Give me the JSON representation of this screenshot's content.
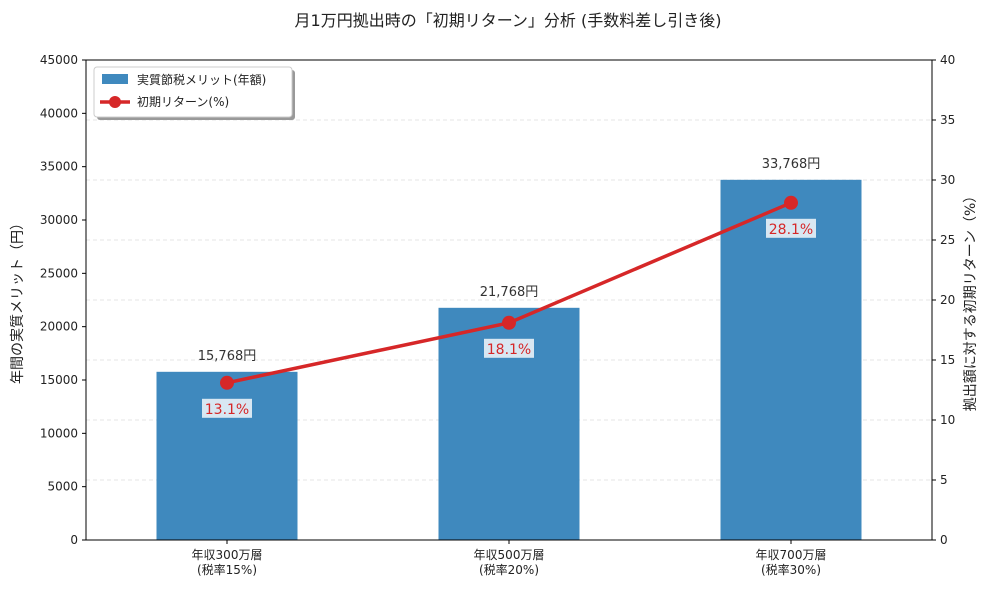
{
  "chart_data": {
    "type": "bar",
    "title": "月1万円拠出時の「初期リターン」分析 (手数料差し引き後)",
    "categories": [
      [
        "年収300万層",
        "(税率15%)"
      ],
      [
        "年収500万層",
        "(税率20%)"
      ],
      [
        "年収700万層",
        "(税率30%)"
      ]
    ],
    "series": [
      {
        "name": "実質節税メリット(年額)",
        "type": "bar",
        "axis": "left",
        "values": [
          15768,
          21768,
          33768
        ],
        "labels": [
          "15,768円",
          "21,768円",
          "33,768円"
        ],
        "color": "#3f89be"
      },
      {
        "name": "初期リターン(%)",
        "type": "line",
        "axis": "right",
        "values": [
          13.1,
          18.1,
          28.1
        ],
        "labels": [
          "13.1%",
          "18.1%",
          "28.1%"
        ],
        "color": "#d62728"
      }
    ],
    "ylabel": "年間の実質メリット（円）",
    "y2label": "拠出額に対する初期リターン（%）",
    "ylim": [
      0,
      45000
    ],
    "y2lim": [
      0,
      40
    ],
    "yticks": [
      0,
      5000,
      10000,
      15000,
      20000,
      25000,
      30000,
      35000,
      40000,
      45000
    ],
    "y2ticks": [
      0,
      5,
      10,
      15,
      20,
      25,
      30,
      35,
      40
    ],
    "grid": true,
    "legend_position": "top-left"
  }
}
